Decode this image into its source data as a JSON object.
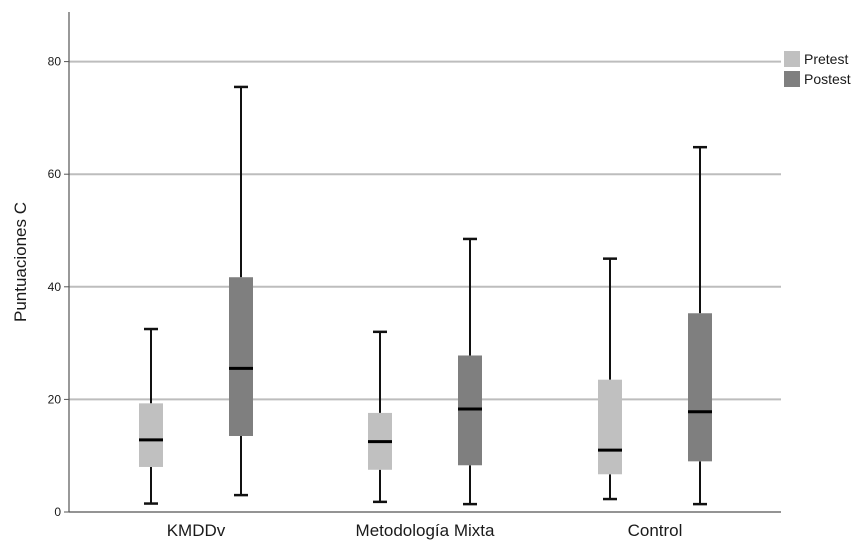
{
  "chart_data": {
    "type": "boxplot",
    "ylabel": "Puntuaciones C",
    "xlabel": "",
    "ylim": [
      0,
      89
    ],
    "yticks": [
      0,
      20,
      40,
      60,
      80
    ],
    "grid": true,
    "legend_position": "top-right",
    "categories": [
      "KMDDv",
      "Metodología Mixta",
      "Control"
    ],
    "series": [
      {
        "name": "Pretest",
        "color": "#c0c0c0",
        "boxes": [
          {
            "min": 1.5,
            "q1": 8,
            "median": 12.8,
            "q3": 19.3,
            "max": 32.5
          },
          {
            "min": 1.8,
            "q1": 7.5,
            "median": 12.5,
            "q3": 17.6,
            "max": 32
          },
          {
            "min": 2.3,
            "q1": 6.7,
            "median": 11,
            "q3": 23.5,
            "max": 45
          }
        ]
      },
      {
        "name": "Postest",
        "color": "#7f7f7f",
        "boxes": [
          {
            "min": 3,
            "q1": 13.5,
            "median": 25.5,
            "q3": 41.7,
            "max": 75.5
          },
          {
            "min": 1.4,
            "q1": 8.3,
            "median": 18.3,
            "q3": 27.8,
            "max": 48.5
          },
          {
            "min": 1.4,
            "q1": 9,
            "median": 17.8,
            "q3": 35.3,
            "max": 64.8
          }
        ]
      }
    ]
  }
}
